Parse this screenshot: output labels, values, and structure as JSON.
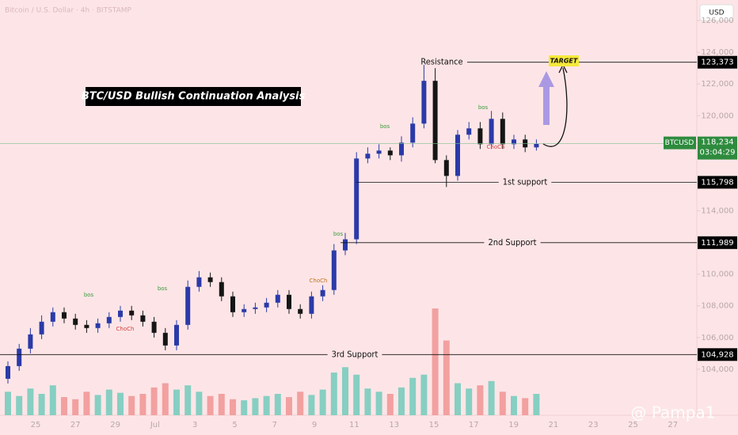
{
  "chart_data": {
    "type": "candlestick",
    "source": "Bitcoin / U.S. Dollar · 4h · BITSTAMP",
    "currency": "USD",
    "title": "BTC/USD Bullish Continuation Analysis",
    "up_color": "#2b3aa8",
    "down_color": "#151515",
    "volume_up_color": "#86cfc2",
    "volume_down_color": "#f2a0a0",
    "ylim": [
      101100,
      127300
    ],
    "yticks": [
      {
        "value": 104000,
        "label": "104,000"
      },
      {
        "value": 106000,
        "label": "106,000"
      },
      {
        "value": 108000,
        "label": "108,000"
      },
      {
        "value": 110000,
        "label": "110,000"
      },
      {
        "value": 112000,
        "label": "112,000"
      },
      {
        "value": 114000,
        "label": "114,000"
      },
      {
        "value": 116000,
        "label": "116,000"
      },
      {
        "value": 118000,
        "label": "118,000"
      },
      {
        "value": 120000,
        "label": "120,000"
      },
      {
        "value": 122000,
        "label": "122,000"
      },
      {
        "value": 124000,
        "label": "124,000"
      },
      {
        "value": 126000,
        "label": "126,000"
      }
    ],
    "date_labels": [
      "25",
      "27",
      "29",
      "Jul",
      "3",
      "5",
      "7",
      "9",
      "11",
      "13",
      "15",
      "17",
      "19",
      "21",
      "23",
      "25",
      "27"
    ],
    "open": [
      103400,
      104200,
      105300,
      106200,
      107000,
      107600,
      107200,
      106800,
      106600,
      106900,
      107300,
      107700,
      107400,
      107000,
      106300,
      105500,
      106800,
      109200,
      109800,
      109500,
      108600,
      107600,
      107800,
      107900,
      108200,
      108700,
      107800,
      107500,
      108600,
      109000,
      111500,
      112200,
      117300,
      117600,
      117800,
      117500,
      118300,
      119500,
      122200,
      117200,
      116200,
      118800,
      119200,
      118200,
      119800,
      118200,
      118500,
      118000
    ],
    "high": [
      104500,
      105600,
      106600,
      107400,
      107900,
      107900,
      107500,
      107100,
      107200,
      107600,
      108000,
      108000,
      107700,
      107300,
      106600,
      107100,
      109600,
      110200,
      110100,
      109800,
      108900,
      108100,
      108200,
      108500,
      109000,
      109000,
      108100,
      108900,
      109300,
      111900,
      112600,
      117700,
      118000,
      118200,
      118000,
      118700,
      119900,
      123200,
      123000,
      117500,
      119100,
      119600,
      119600,
      120300,
      120200,
      118800,
      118800,
      118500
    ],
    "low": [
      103100,
      103900,
      105000,
      105900,
      106700,
      106900,
      106500,
      106300,
      106300,
      106600,
      107000,
      107100,
      106700,
      106000,
      105200,
      105200,
      106500,
      108900,
      109200,
      108300,
      107300,
      107300,
      107500,
      107600,
      107900,
      107500,
      107200,
      107200,
      108300,
      108700,
      111200,
      111900,
      117000,
      117300,
      117200,
      117100,
      118000,
      119200,
      117000,
      115500,
      115900,
      118500,
      117900,
      117900,
      117900,
      117900,
      117700,
      117800
    ],
    "close": [
      104200,
      105300,
      106200,
      107000,
      107600,
      107200,
      106800,
      106600,
      106900,
      107300,
      107700,
      107400,
      107000,
      106300,
      105500,
      106800,
      109200,
      109800,
      109500,
      108600,
      107600,
      107800,
      107900,
      108200,
      108700,
      107800,
      107500,
      108600,
      109000,
      111500,
      112200,
      117300,
      117600,
      117800,
      117500,
      118300,
      119500,
      122200,
      117200,
      116200,
      118800,
      119200,
      118200,
      119800,
      118200,
      118500,
      118000,
      118234
    ],
    "volume": [
      22,
      18,
      25,
      20,
      28,
      17,
      15,
      22,
      19,
      24,
      21,
      18,
      20,
      26,
      30,
      24,
      28,
      22,
      18,
      20,
      15,
      14,
      16,
      18,
      20,
      17,
      22,
      19,
      24,
      40,
      45,
      38,
      25,
      22,
      20,
      26,
      35,
      38,
      100,
      70,
      30,
      25,
      28,
      32,
      22,
      18,
      16,
      20
    ],
    "levels": [
      {
        "label": "Resistance",
        "value": 123373,
        "value_label": "123,373"
      },
      {
        "label": "1st support",
        "value": 115798,
        "value_label": "115,798"
      },
      {
        "label": "2nd Support",
        "value": 111989,
        "value_label": "111,989"
      },
      {
        "label": "3rd Support",
        "value": 104928,
        "value_label": "104,928"
      }
    ],
    "current": {
      "symbol": "BTCUSD",
      "value": 118234,
      "value_label": "118,234",
      "countdown": "03:04:29"
    },
    "target": "TARGET",
    "signals": [
      "bos",
      "bos",
      "ChoCh",
      "bos",
      "ChoCh",
      "bos",
      "bos",
      "ChoCh"
    ],
    "watermark": "@ Pampa1"
  }
}
